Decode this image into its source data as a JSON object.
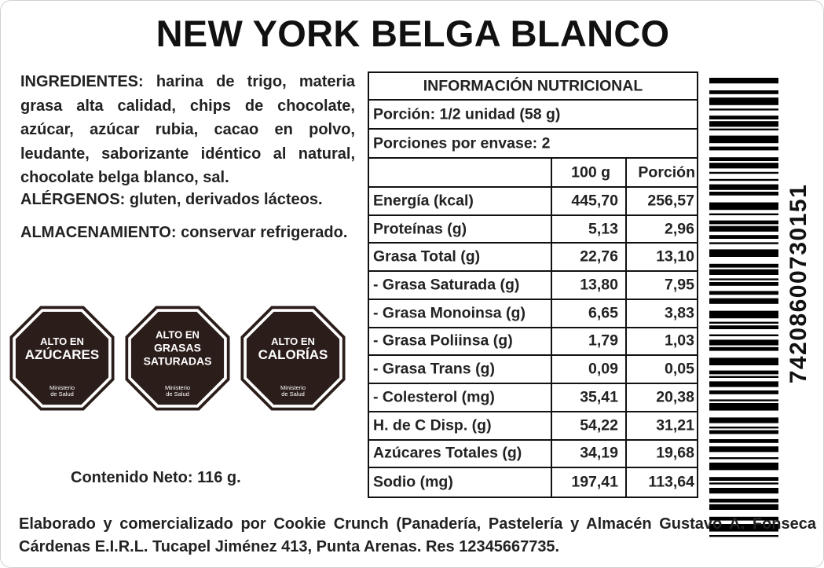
{
  "title": "NEW YORK BELGA BLANCO",
  "ingredients": {
    "label": "INGREDIENTES:",
    "text": "harina de trigo, materia grasa alta calidad, chips de chocolate, azúcar, azúcar rubia, cacao en polvo, leudante, saborizante idéntico al natural, chocolate belga blanco, sal."
  },
  "allergens": {
    "label": "ALÉRGENOS:",
    "text": "gluten, derivados lácteos."
  },
  "storage": {
    "label": "ALMACENAMIENTO:",
    "text": "conservar refrigerado."
  },
  "seals": [
    {
      "lines": [
        "ALTO EN",
        "AZÚCARES"
      ],
      "ministry": [
        "Ministerio",
        "de Salud"
      ]
    },
    {
      "lines": [
        "ALTO EN",
        "GRASAS",
        "SATURADAS"
      ],
      "ministry": [
        "Ministerio",
        "de Salud"
      ]
    },
    {
      "lines": [
        "ALTO EN",
        "CALORÍAS"
      ],
      "ministry": [
        "Ministerio",
        "de Salud"
      ]
    }
  ],
  "net_content": "Contenido Neto: 116 g.",
  "nutrition": {
    "title": "INFORMACIÓN NUTRICIONAL",
    "portion": "Porción: 1/2 unidad (58 g)",
    "portions_per_package": "Porciones por envase: 2",
    "headers": [
      "100 g",
      "Porción"
    ],
    "rows": [
      {
        "label": "Energía (kcal)",
        "per_100g": "445,70",
        "portion": "256,57"
      },
      {
        "label": "Proteínas (g)",
        "per_100g": "5,13",
        "portion": "2,96"
      },
      {
        "label": "Grasa Total (g)",
        "per_100g": "22,76",
        "portion": "13,10"
      },
      {
        "label": "- Grasa Saturada (g)",
        "per_100g": "13,80",
        "portion": "7,95"
      },
      {
        "label": "- Grasa Monoinsa (g)",
        "per_100g": "6,65",
        "portion": "3,83"
      },
      {
        "label": "- Grasa Poliinsa (g)",
        "per_100g": "1,79",
        "portion": "1,03"
      },
      {
        "label": "- Grasa Trans (g)",
        "per_100g": "0,09",
        "portion": "0,05"
      },
      {
        "label": "- Colesterol (mg)",
        "per_100g": "35,41",
        "portion": "20,38"
      },
      {
        "label": "H. de C Disp. (g)",
        "per_100g": "54,22",
        "portion": "31,21"
      },
      {
        "label": "Azúcares Totales (g)",
        "per_100g": "34,19",
        "portion": "19,68"
      },
      {
        "label": "Sodio (mg)",
        "per_100g": "197,41",
        "portion": "113,64"
      }
    ]
  },
  "barcode_number": "74208600730151",
  "footer": "Elaborado y comercializado por Cookie Crunch (Panadería, Pastelería y Almacén Gustavo A. Fonseca Cárdenas E.I.R.L. Tucapel Jiménez 413, Punta Arenas. Res 12345667735."
}
